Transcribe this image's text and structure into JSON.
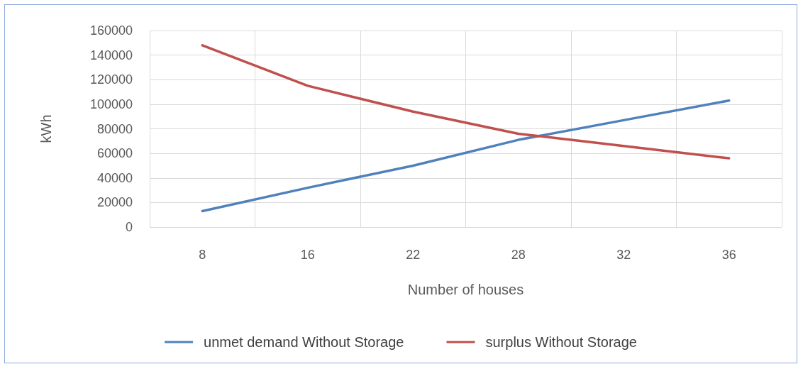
{
  "chart_data": {
    "type": "line",
    "xlabel": "Number of houses",
    "ylabel": "kWh",
    "categories": [
      "8",
      "16",
      "22",
      "28",
      "32",
      "36"
    ],
    "series": [
      {
        "name": "unmet demand Without Storage",
        "color": "#4f81bd",
        "values": [
          13000,
          32000,
          50000,
          71000,
          87000,
          103000
        ]
      },
      {
        "name": "surplus Without Storage",
        "color": "#c0504d",
        "values": [
          148000,
          115000,
          94000,
          76000,
          66000,
          56000
        ]
      }
    ],
    "ylim": [
      0,
      160000
    ],
    "yticks": [
      0,
      20000,
      40000,
      60000,
      80000,
      100000,
      120000,
      140000,
      160000
    ],
    "grid": true,
    "legend": "bottom",
    "marker": "none",
    "line_style": "solid"
  }
}
